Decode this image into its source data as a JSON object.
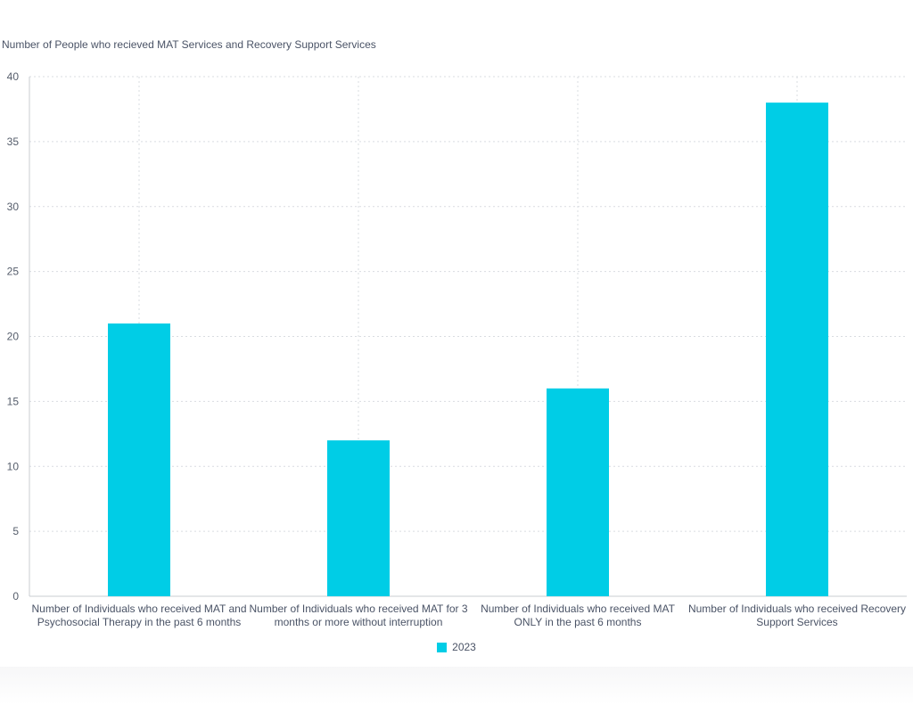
{
  "chart_data": {
    "type": "bar",
    "title": "Number of People who recieved MAT Services and Recovery Support Services",
    "categories": [
      [
        "Number of Individuals who received MAT and",
        "Psychosocial Therapy in the past 6 months"
      ],
      [
        "Number of Individuals who received MAT for 3",
        "months or more without interruption"
      ],
      [
        "Number of Individuals who received MAT",
        "ONLY in the past 6 months"
      ],
      [
        "Number of Individuals who received Recovery",
        "Support Services"
      ]
    ],
    "series": [
      {
        "name": "2023",
        "values": [
          21,
          12,
          16,
          38
        ],
        "color": "#00cde6"
      }
    ],
    "ylim": [
      0,
      40
    ],
    "yticks": [
      0,
      5,
      10,
      15,
      20,
      25,
      30,
      35,
      40
    ],
    "grid": true,
    "legend_position": "bottom-center"
  }
}
